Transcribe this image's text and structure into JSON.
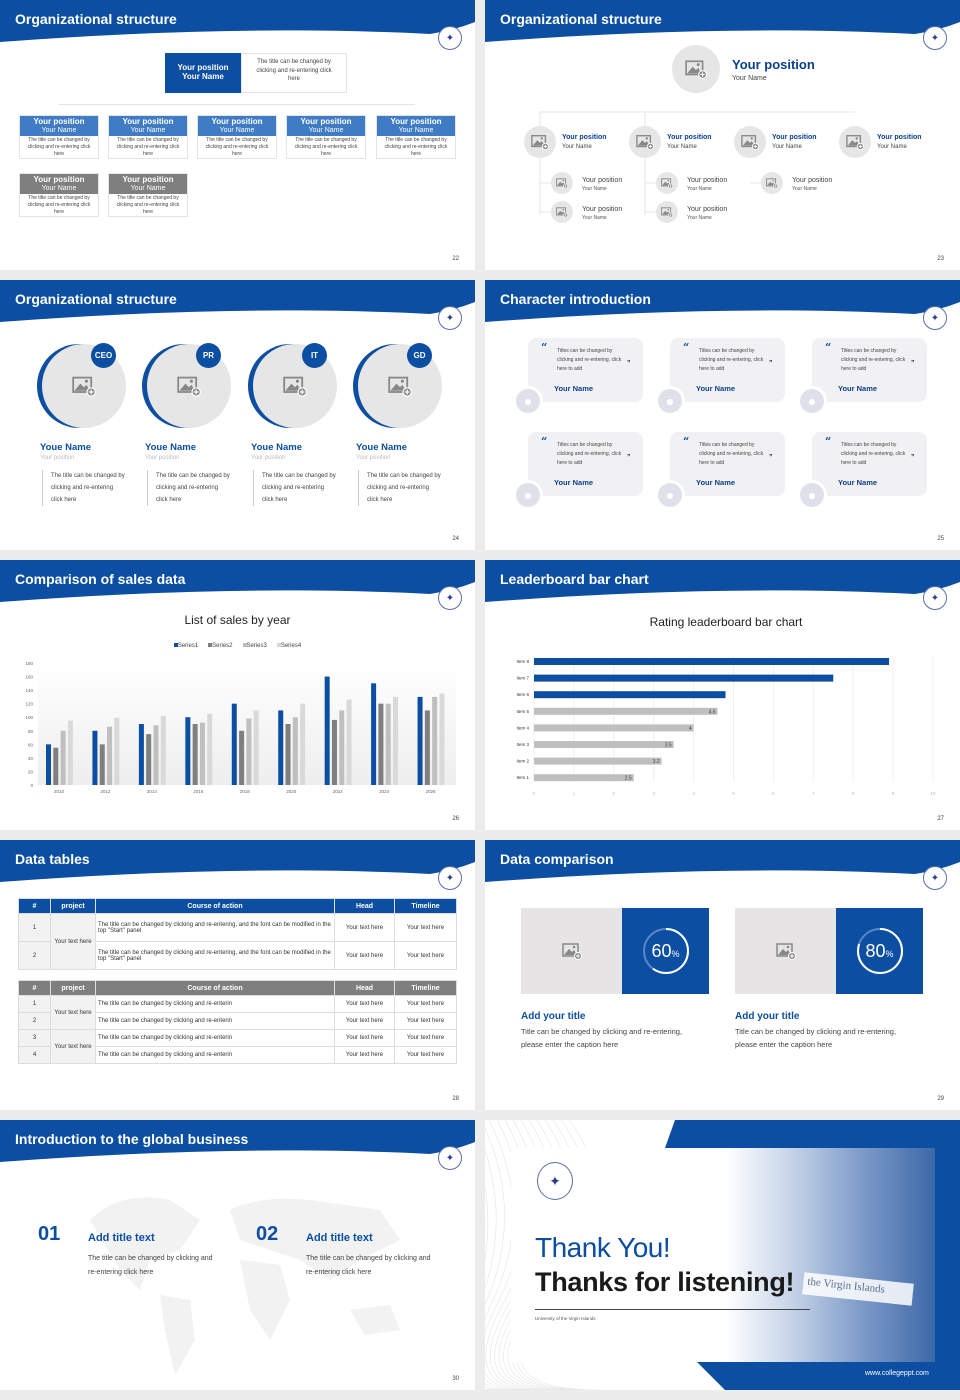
{
  "colors": {
    "brand": "#0b4ea2",
    "mid": "#3f7cc4",
    "gray": "#7f7f7f"
  },
  "icons": {
    "logo": "university-seal-icon",
    "image": "image-placeholder-icon",
    "quote": "quote-icon",
    "user": "user-avatar-icon"
  },
  "s22": {
    "title": "Organizational structure",
    "page": "22",
    "top": {
      "position": "Your position",
      "name": "Your Name",
      "desc": "The title can be changed by clicking and re-entering click here"
    },
    "children": [
      {
        "position": "Your position",
        "name": "Your Name",
        "desc": "The title can be changed by clicking and re-entering click here"
      },
      {
        "position": "Your position",
        "name": "Your Name",
        "desc": "The title can be changed by clicking and re-entering click here"
      },
      {
        "position": "Your position",
        "name": "Your Name",
        "desc": "The title can be changed by clicking and re-entering click here"
      },
      {
        "position": "Your position",
        "name": "Your Name",
        "desc": "The title can be changed by clicking and re-entering click here"
      },
      {
        "position": "Your position",
        "name": "Your Name",
        "desc": "The title can be changed by clicking and re-entering click here"
      }
    ],
    "sub": [
      {
        "position": "Your position",
        "name": "Your Name",
        "desc": "The title can be changed by clicking and re-entering click here"
      },
      {
        "position": "Your position",
        "name": "Your Name",
        "desc": "The title can be changed by clicking and re-entering click here"
      }
    ]
  },
  "s23": {
    "title": "Organizational structure",
    "page": "23",
    "top": {
      "position": "Your position",
      "name": "Your Name"
    },
    "level2": [
      {
        "position": "Your position",
        "name": "Your Name"
      },
      {
        "position": "Your position",
        "name": "Your Name"
      },
      {
        "position": "Your position",
        "name": "Your Name"
      },
      {
        "position": "Your position",
        "name": "Your Name"
      }
    ],
    "level3": [
      {
        "position": "Your position",
        "name": "Your Name"
      },
      {
        "position": "Your position",
        "name": "Your Name"
      },
      {
        "position": "Your position",
        "name": "Your Name"
      },
      {
        "position": "Your position",
        "name": "Your Name"
      },
      {
        "position": "Your position",
        "name": "Your Name"
      }
    ]
  },
  "s24": {
    "title": "Organizational structure",
    "page": "24",
    "members": [
      {
        "badge": "CEO",
        "name": "Youe Name",
        "position": "Your position",
        "desc": "The title can be changed by clicking and re-entering click here"
      },
      {
        "badge": "PR",
        "name": "Youe Name",
        "position": "Your position",
        "desc": "The title can be changed by clicking and re-entering click here"
      },
      {
        "badge": "IT",
        "name": "Youe Name",
        "position": "Your position",
        "desc": "The title can be changed by clicking and re-entering click here"
      },
      {
        "badge": "GD",
        "name": "Youe Name",
        "position": "Your position",
        "desc": "The title can be changed by clicking and re-entering click here"
      }
    ]
  },
  "s25": {
    "title": "Character introduction",
    "page": "25",
    "cards": [
      {
        "text": "Titles can be changed by clicking and re-entering, click here to add",
        "name": "Your Name"
      },
      {
        "text": "Titles can be changed by clicking and re-entering, click here to add",
        "name": "Your Name"
      },
      {
        "text": "Titles can be changed by clicking and re-entering, click here to add",
        "name": "Your Name"
      },
      {
        "text": "Titles can be changed by clicking and re-entering, click here to add",
        "name": "Your Name"
      },
      {
        "text": "Titles can be changed by clicking and re-entering, click here to add",
        "name": "Your Name"
      },
      {
        "text": "Titles can be changed by clicking and re-entering, click here to add",
        "name": "Your Name"
      }
    ]
  },
  "s26": {
    "title": "Comparison of sales data",
    "page": "26"
  },
  "s27": {
    "title": "Leaderboard bar chart",
    "page": "27"
  },
  "chart_data": [
    {
      "type": "bar",
      "title": "List of sales by year",
      "categories": [
        "2010",
        "2012",
        "2014",
        "2016",
        "2018",
        "2020",
        "2022",
        "2024",
        "2026"
      ],
      "series": [
        {
          "name": "Series1",
          "color": "#0b4ea2",
          "values": [
            60,
            80,
            90,
            100,
            120,
            110,
            160,
            150,
            130
          ]
        },
        {
          "name": "Series2",
          "color": "#7f7f7f",
          "values": [
            55,
            60,
            75,
            90,
            80,
            90,
            96,
            120,
            110
          ]
        },
        {
          "name": "Series3",
          "color": "#bfbfbf",
          "values": [
            80,
            86,
            88,
            92,
            98,
            100,
            110,
            120,
            130
          ]
        },
        {
          "name": "Series4",
          "color": "#d9d9d9",
          "values": [
            95,
            99,
            102,
            105,
            110,
            120,
            126,
            130,
            135
          ]
        }
      ],
      "ylim": [
        0,
        180
      ],
      "yticks": [
        0,
        20,
        40,
        60,
        80,
        100,
        120,
        140,
        160,
        180
      ],
      "legend": "top",
      "grid": false
    },
    {
      "type": "bar",
      "orientation": "horizontal",
      "title": "Rating leaderboard bar chart",
      "categories": [
        "Item 8",
        "Item 7",
        "Item 6",
        "Item 5",
        "Item 4",
        "Item 3",
        "Item 2",
        "Item 1"
      ],
      "values": [
        8.9,
        7.5,
        4.8,
        4.6,
        4,
        3.5,
        3.2,
        2.5
      ],
      "labels": [
        "",
        "",
        "",
        "4.6",
        "4",
        "3.5",
        "3.2",
        "2.5"
      ],
      "colors": [
        "#0b4ea2",
        "#0b4ea2",
        "#0b4ea2",
        "#bfbfbf",
        "#bfbfbf",
        "#bfbfbf",
        "#bfbfbf",
        "#bfbfbf"
      ],
      "xlim": [
        0,
        10
      ],
      "xticks": [
        0,
        1,
        2,
        3,
        4,
        5,
        6,
        7,
        8,
        9,
        10
      ],
      "grid": true
    }
  ],
  "s28": {
    "title": "Data tables",
    "page": "28",
    "headers": [
      "#",
      "project",
      "Course of action",
      "Head",
      "Timeline"
    ],
    "t1": {
      "project": "Your text here",
      "rows": [
        {
          "n": "1",
          "action": "The title can be changed by clicking and re-entering, and the font can be modified in the top \"Start\" panel",
          "head": "Your text here",
          "time": "Your text here"
        },
        {
          "n": "2",
          "action": "The title can be changed by clicking and re-entering, and the font can be modified in the top \"Start\" panel",
          "head": "Your text here",
          "time": "Your text here"
        }
      ]
    },
    "t2": {
      "project1": "Your text here",
      "project2": "Your text here",
      "rows": [
        {
          "n": "1",
          "action": "The title can be changed by clicking and re-enterin",
          "head": "Your text here",
          "time": "Your text here"
        },
        {
          "n": "2",
          "action": "The title can be changed by clicking and re-enterin",
          "head": "Your text here",
          "time": "Your text here"
        },
        {
          "n": "3",
          "action": "The title can be changed by clicking and re-enterin",
          "head": "Your text here",
          "time": "Your text here"
        },
        {
          "n": "4",
          "action": "The title can be changed by clicking and re-enterin",
          "head": "Your text here",
          "time": "Your text here"
        }
      ]
    }
  },
  "s29": {
    "title": "Data comparison",
    "page": "29",
    "items": [
      {
        "percent": 60,
        "value": "60",
        "unit": "%",
        "title": "Add your title",
        "desc": "Title can be changed by clicking and re-entering, please enter the caption here"
      },
      {
        "percent": 80,
        "value": "80",
        "unit": "%",
        "title": "Add your title",
        "desc": "Title can be changed by clicking and re-entering, please enter the caption here"
      }
    ]
  },
  "s30": {
    "title": "Introduction to the global business",
    "page": "30",
    "items": [
      {
        "num": "01",
        "title": "Add title text",
        "desc": "The title can be changed by clicking and re-entering click here"
      },
      {
        "num": "02",
        "title": "Add title text",
        "desc": "The title can be changed by clicking and re-entering click here"
      }
    ]
  },
  "s31": {
    "thanks": "Thank You!",
    "listening": "Thanks for listening!",
    "university": "University of the Virgin Islands",
    "sign": "the Virgin Islands",
    "website": "www.collegeppt.com"
  }
}
